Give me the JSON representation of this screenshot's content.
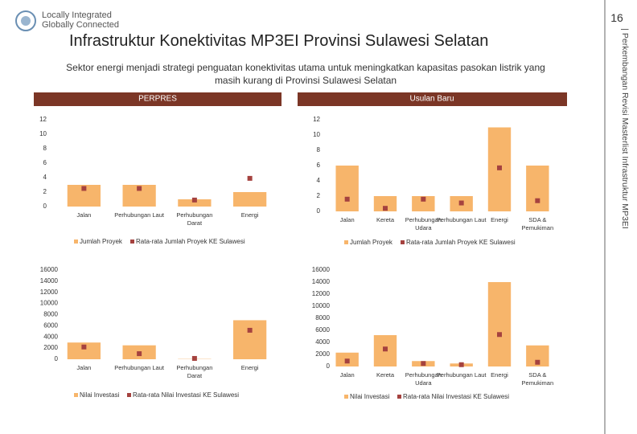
{
  "logo": {
    "line1": "Locally Integrated",
    "line2": "Globally Connected"
  },
  "page_number": "16",
  "side_text": "| Perkembangan Revisi Masterlist Infrastruktur MP3EI",
  "title": "Infrastruktur Konektivitas MP3EI Provinsi Sulawesi Selatan",
  "subtitle": "Sektor energi menjadi strategi penguatan konektivitas utama untuk meningkatkan kapasitas pasokan listrik yang masih kurang di  Provinsi Sulawesi Selatan",
  "chart_data": [
    {
      "type": "bar",
      "title": "PERPRES",
      "categories": [
        "Jalan",
        "Perhubungan Laut",
        "Perhubungan Darat",
        "Energi"
      ],
      "series": [
        {
          "name": "Jumlah Proyek",
          "color": "#f7b56b",
          "style": "bar",
          "values": [
            3,
            3,
            1,
            2
          ]
        },
        {
          "name": "Rata-rata Jumlah Proyek KE Sulawesi",
          "color": "#a5423f",
          "style": "marker",
          "values": [
            2.5,
            2.5,
            0.9,
            3.9
          ]
        }
      ],
      "ylim": [
        0,
        12
      ],
      "yticks": [
        0,
        2,
        4,
        6,
        8,
        10,
        12
      ]
    },
    {
      "type": "bar",
      "title": "Usulan Baru",
      "categories": [
        "Jalan",
        "Kereta",
        "Perhubungan Udara",
        "Perhubungan Laut",
        "Energi",
        "SDA & Pemukiman"
      ],
      "series": [
        {
          "name": "Jumlah Proyek",
          "color": "#f7b56b",
          "style": "bar",
          "values": [
            6,
            2,
            2,
            2,
            11,
            6
          ]
        },
        {
          "name": "Rata-rata Jumlah Proyek KE Sulawesi",
          "color": "#a5423f",
          "style": "marker",
          "values": [
            1.6,
            0.4,
            1.6,
            1.1,
            5.7,
            1.4
          ]
        }
      ],
      "ylim": [
        0,
        12
      ],
      "yticks": [
        0,
        2,
        4,
        6,
        8,
        10,
        12
      ]
    },
    {
      "type": "bar",
      "categories": [
        "Jalan",
        "Perhubungan Laut",
        "Perhubungan Darat",
        "Energi"
      ],
      "series": [
        {
          "name": "Nilai Investasi",
          "color": "#f7b56b",
          "style": "bar",
          "values": [
            3000,
            2500,
            50,
            7000
          ]
        },
        {
          "name": "Rata-rata Nilai Investasi KE Sulawesi",
          "color": "#a5423f",
          "style": "marker",
          "values": [
            2200,
            1000,
            150,
            5200
          ]
        }
      ],
      "ylim": [
        0,
        16000
      ],
      "yticks": [
        0,
        2000,
        4000,
        6000,
        8000,
        10000,
        12000,
        14000,
        16000
      ]
    },
    {
      "type": "bar",
      "categories": [
        "Jalan",
        "Kereta",
        "Perhubungan Udara",
        "Perhubungan Laut",
        "Energi",
        "SDA & Pemukiman"
      ],
      "series": [
        {
          "name": "Nilai Investasi",
          "color": "#f7b56b",
          "style": "bar",
          "values": [
            2300,
            5200,
            900,
            500,
            14000,
            3500
          ]
        },
        {
          "name": "Rata-rata Nilai Investasi KE Sulawesi",
          "color": "#a5423f",
          "style": "marker",
          "values": [
            900,
            2900,
            500,
            300,
            5300,
            700
          ]
        }
      ],
      "ylim": [
        0,
        16000
      ],
      "yticks": [
        0,
        2000,
        4000,
        6000,
        8000,
        10000,
        12000,
        14000,
        16000
      ]
    }
  ]
}
